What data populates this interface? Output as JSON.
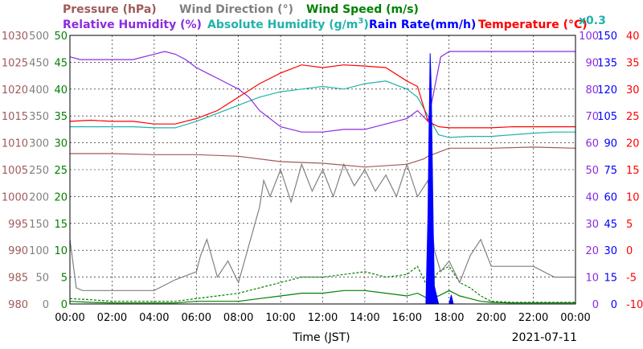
{
  "chart_data": {
    "type": "line",
    "date": "2021-07-11",
    "xlabel": "Time (JST)",
    "x_ticks": [
      "00:00",
      "02:00",
      "04:00",
      "06:00",
      "08:00",
      "10:00",
      "12:00",
      "14:00",
      "16:00",
      "18:00",
      "20:00",
      "22:00",
      "00:00"
    ],
    "xlim_hours": [
      0,
      24
    ],
    "grid": true,
    "legend": "top",
    "axes": [
      {
        "name": "pressure",
        "label": "Pressure (hPa)",
        "color": "#a05a5a",
        "min": 980,
        "max": 1030,
        "ticks": [
          "980",
          "985",
          "990",
          "995",
          "1000",
          "1005",
          "1010",
          "1015",
          "1020",
          "1025",
          "1030"
        ]
      },
      {
        "name": "wind-direction",
        "label": "Wind Direction (°)",
        "color": "#808080",
        "min": 0,
        "max": 500,
        "ticks": [
          "0",
          "50",
          "100",
          "150",
          "200",
          "250",
          "300",
          "350",
          "400",
          "450",
          "500"
        ]
      },
      {
        "name": "wind-speed",
        "label": "Wind Speed (m/s)",
        "color": "#008000",
        "min": 0,
        "max": 50,
        "ticks": [
          "0",
          "5",
          "10",
          "15",
          "20",
          "25",
          "30",
          "35",
          "40",
          "45",
          "50"
        ]
      },
      {
        "name": "relative-humidity",
        "label": "Relative Humidity (%)",
        "color": "#8a2be2",
        "min": 0,
        "max": 100,
        "ticks": [
          "0",
          "10",
          "20",
          "30",
          "40",
          "50",
          "60",
          "70",
          "80",
          "90",
          "100"
        ]
      },
      {
        "name": "rain-rate",
        "label": "Rain Rate(mm/h)",
        "color": "#0000ff",
        "min": 0,
        "max": 150,
        "ticks": [
          "0",
          "15",
          "30",
          "45",
          "60",
          "75",
          "90",
          "105",
          "120",
          "135",
          "150"
        ]
      },
      {
        "name": "temperature",
        "label": "Temperature (°C)",
        "color": "#ff0000",
        "min": -10,
        "max": 40,
        "ticks": [
          "-10",
          "-5",
          "0",
          "5",
          "10",
          "15",
          "20",
          "25",
          "30",
          "35",
          "40"
        ]
      }
    ],
    "abs_humidity": {
      "label_main": "Absolute Humidity (g/m",
      "label_sup": "3",
      "label_close": ")",
      "scale_note": "x0.3",
      "color": "#20b2aa"
    },
    "series": [
      {
        "key": "temperature",
        "axis": "temperature",
        "color": "#ff0000",
        "x": [
          0,
          1,
          2,
          3,
          4,
          5,
          6,
          7,
          8,
          9,
          10,
          11,
          12,
          13,
          14,
          15,
          16,
          16.5,
          17,
          17.5,
          18,
          19,
          20,
          21,
          22,
          23,
          24
        ],
        "y": [
          24.0,
          24.2,
          24.0,
          24.0,
          23.5,
          23.5,
          24.5,
          26.0,
          28.5,
          31.0,
          33.0,
          34.5,
          34.0,
          34.5,
          34.3,
          34.0,
          31.5,
          30.5,
          24.0,
          23.0,
          22.8,
          22.8,
          22.8,
          23.0,
          23.0,
          23.0,
          23.0
        ]
      },
      {
        "key": "relative-humidity",
        "axis": "relative-humidity",
        "color": "#8a2be2",
        "x": [
          0,
          0.5,
          1,
          2,
          3,
          4,
          4.5,
          5,
          5.5,
          6,
          6.5,
          7,
          7.5,
          8,
          8.5,
          9,
          10,
          11,
          12,
          13,
          14,
          15,
          16,
          16.5,
          17,
          17.3,
          17.6,
          18,
          19,
          20,
          21,
          22,
          23,
          24
        ],
        "y": [
          92,
          91,
          91,
          91,
          91,
          93,
          94,
          93,
          91,
          88,
          86,
          84,
          82,
          80,
          77,
          72,
          66,
          64,
          64,
          65,
          65,
          67,
          69,
          72,
          68,
          80,
          92,
          94,
          94,
          94,
          94,
          94,
          94,
          94
        ]
      },
      {
        "key": "absolute-humidity",
        "axis": "temperature",
        "color": "#20b2aa",
        "x": [
          0,
          1,
          2,
          3,
          4,
          5,
          6,
          7,
          8,
          9,
          10,
          11,
          12,
          13,
          14,
          15,
          16,
          16.5,
          17,
          17.5,
          18,
          19,
          20,
          21,
          22,
          23,
          24
        ],
        "y": [
          23.0,
          23.0,
          23.0,
          23.0,
          22.8,
          22.8,
          24.0,
          25.5,
          27.0,
          28.5,
          29.5,
          30.0,
          30.5,
          30.0,
          31.0,
          31.5,
          30.0,
          28.5,
          25.0,
          21.5,
          21.0,
          21.2,
          21.2,
          21.5,
          21.8,
          22.0,
          22.0
        ]
      },
      {
        "key": "pressure",
        "axis": "pressure",
        "color": "#a05a5a",
        "x": [
          0,
          2,
          4,
          6,
          8,
          10,
          12,
          14,
          16,
          16.8,
          17,
          18,
          20,
          22,
          24
        ],
        "y": [
          1008,
          1008,
          1007.8,
          1007.8,
          1007.5,
          1006.5,
          1006.2,
          1005.5,
          1006,
          1007,
          1007.5,
          1009,
          1009,
          1009.2,
          1009
        ]
      },
      {
        "key": "wind-direction",
        "axis": "wind-direction",
        "color": "#808080",
        "x": [
          0,
          0.3,
          0.6,
          1,
          2,
          3,
          4,
          5,
          6,
          6.2,
          6.5,
          7,
          7.5,
          8,
          8.5,
          9,
          9.2,
          9.5,
          10,
          10.5,
          11,
          11.5,
          12,
          12.5,
          13,
          13.5,
          14,
          14.5,
          15,
          15.5,
          16,
          16.5,
          17,
          17.3,
          17.6,
          18,
          18.5,
          19,
          19.5,
          20,
          21,
          22,
          23,
          24
        ],
        "y": [
          120,
          30,
          25,
          25,
          25,
          25,
          25,
          45,
          60,
          90,
          120,
          50,
          80,
          40,
          110,
          180,
          230,
          200,
          250,
          190,
          260,
          210,
          250,
          200,
          260,
          220,
          250,
          210,
          240,
          200,
          260,
          200,
          230,
          100,
          60,
          80,
          40,
          90,
          120,
          70,
          70,
          70,
          50,
          50
        ]
      },
      {
        "key": "wind-speed",
        "axis": "wind-speed",
        "color": "#008000",
        "x": [
          0,
          1,
          2,
          3,
          4,
          5,
          6,
          7,
          8,
          9,
          10,
          11,
          12,
          13,
          14,
          15,
          16,
          16.5,
          17,
          17.5,
          18,
          18.5,
          19,
          19.5,
          20,
          21,
          22,
          23,
          24
        ],
        "y": [
          0.5,
          0.3,
          0.2,
          0.2,
          0.2,
          0.2,
          0.5,
          0.5,
          0.5,
          1.0,
          1.5,
          2.0,
          2.0,
          2.5,
          2.5,
          2.0,
          1.5,
          2.0,
          1.0,
          1.5,
          2.5,
          1.5,
          1.0,
          0.5,
          0.3,
          0.2,
          0.2,
          0.2,
          0.2
        ]
      },
      {
        "key": "wind-gust",
        "axis": "wind-speed",
        "color": "#008000",
        "dashed": true,
        "x": [
          0,
          1,
          2,
          3,
          4,
          5,
          6,
          7,
          8,
          9,
          10,
          11,
          12,
          13,
          14,
          15,
          16,
          16.5,
          17,
          17.5,
          18,
          18.5,
          19,
          19.5,
          20,
          21,
          22,
          23,
          24
        ],
        "y": [
          1.0,
          0.8,
          0.5,
          0.5,
          0.5,
          0.5,
          1.0,
          1.5,
          2.0,
          3.0,
          4.0,
          5.0,
          5.0,
          5.5,
          6.0,
          5.0,
          5.5,
          7.0,
          3.0,
          6.0,
          7.0,
          4.0,
          3.0,
          1.5,
          0.5,
          0.3,
          0.3,
          0.3,
          0.3
        ]
      },
      {
        "key": "rain-rate",
        "axis": "rain-rate",
        "color": "#0000ff",
        "filled": true,
        "x": [
          0,
          16.9,
          17.0,
          17.05,
          17.1,
          17.15,
          17.2,
          17.25,
          17.3,
          17.5,
          17.7,
          18.0,
          18.1,
          18.2,
          18.3,
          24
        ],
        "y": [
          0,
          0,
          50,
          100,
          140,
          120,
          80,
          40,
          10,
          0,
          0,
          0,
          5,
          0,
          0,
          0
        ]
      }
    ]
  }
}
